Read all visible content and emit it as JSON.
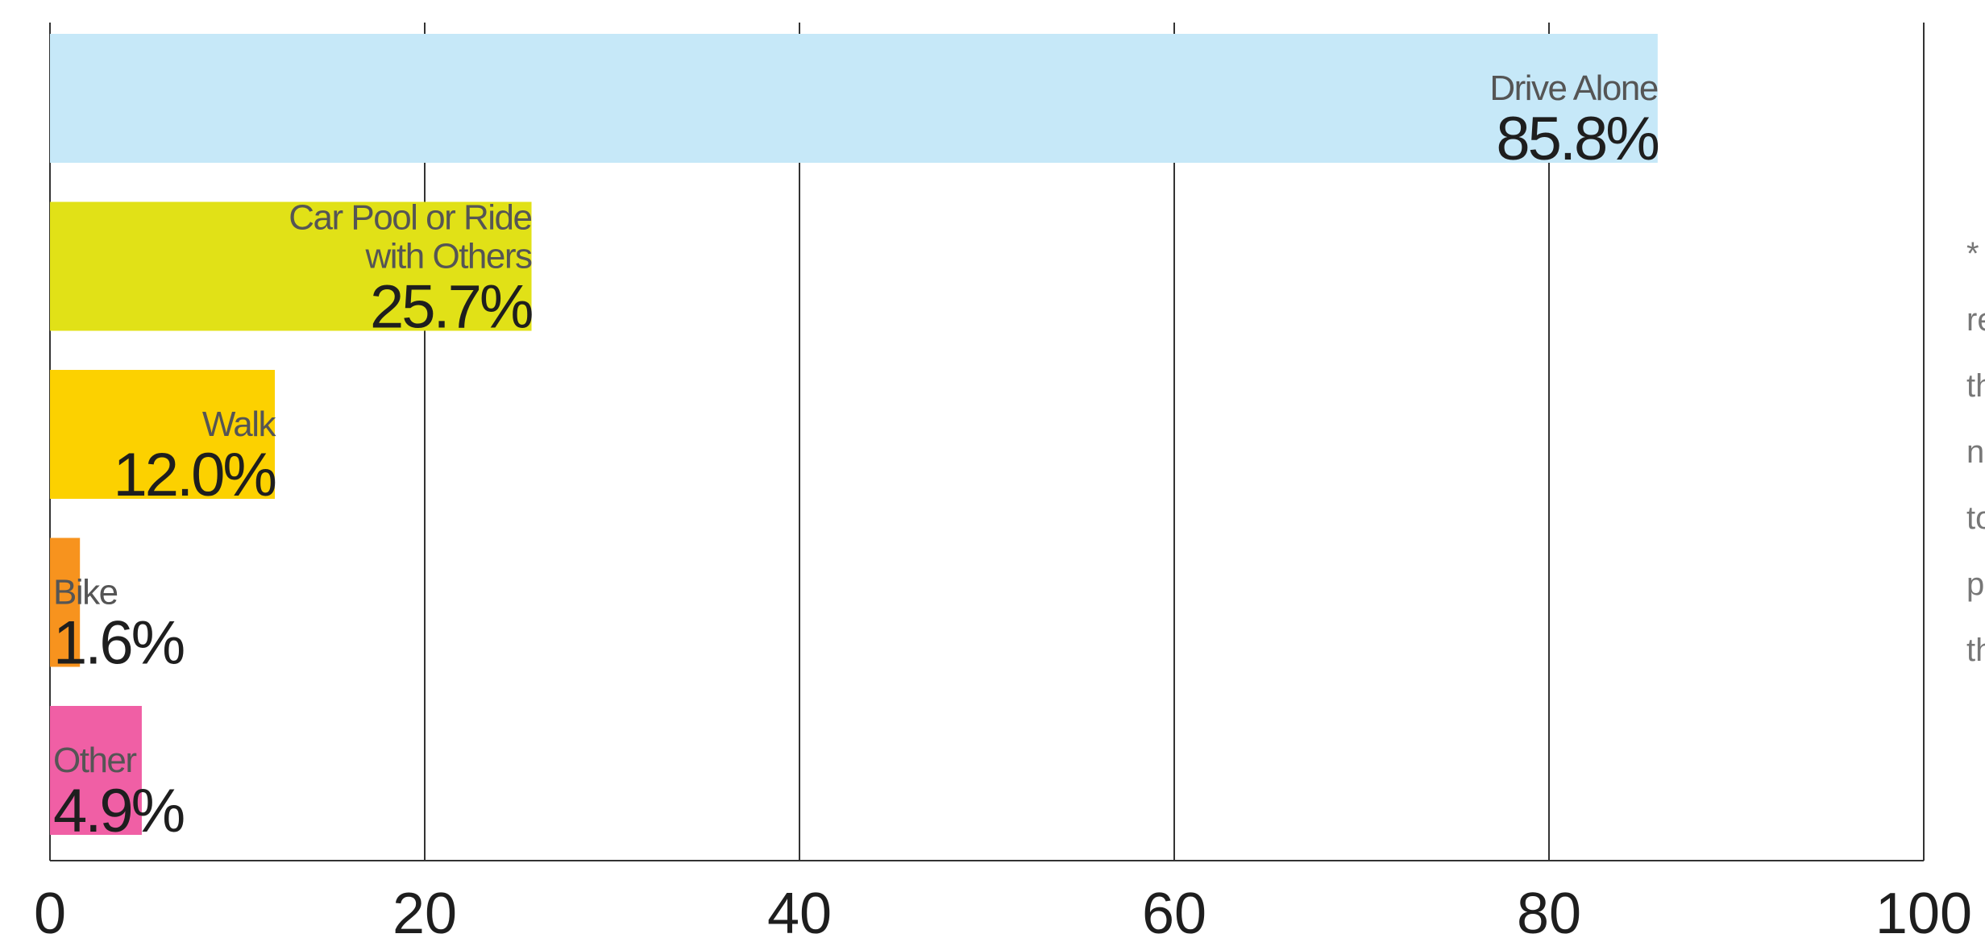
{
  "chart_data": {
    "type": "bar",
    "orientation": "horizontal",
    "title": "",
    "xlabel": "",
    "ylabel": "",
    "xlim": [
      0,
      100
    ],
    "x_ticks": [
      0,
      20,
      40,
      60,
      80,
      100
    ],
    "grid": "vertical",
    "bars": [
      {
        "label_lines": [
          "Drive Alone"
        ],
        "value": 85.8,
        "value_label": "85.8%",
        "color": "#c6e8f8"
      },
      {
        "label_lines": [
          "Car Pool or Ride",
          "with Others"
        ],
        "value": 25.7,
        "value_label": "25.7%",
        "color": "#e1e117"
      },
      {
        "label_lines": [
          "Walk"
        ],
        "value": 12.0,
        "value_label": "12.0%",
        "color": "#fcd100"
      },
      {
        "label_lines": [
          "Bike"
        ],
        "value": 1.6,
        "value_label": "1.6%",
        "color": "#f7931e"
      },
      {
        "label_lines": [
          "Other"
        ],
        "value": 4.9,
        "value_label": "4.9%",
        "color": "#f05fa5"
      }
    ]
  },
  "side_note": [
    "*",
    "re",
    "th",
    "n",
    "to",
    "p",
    "th"
  ]
}
